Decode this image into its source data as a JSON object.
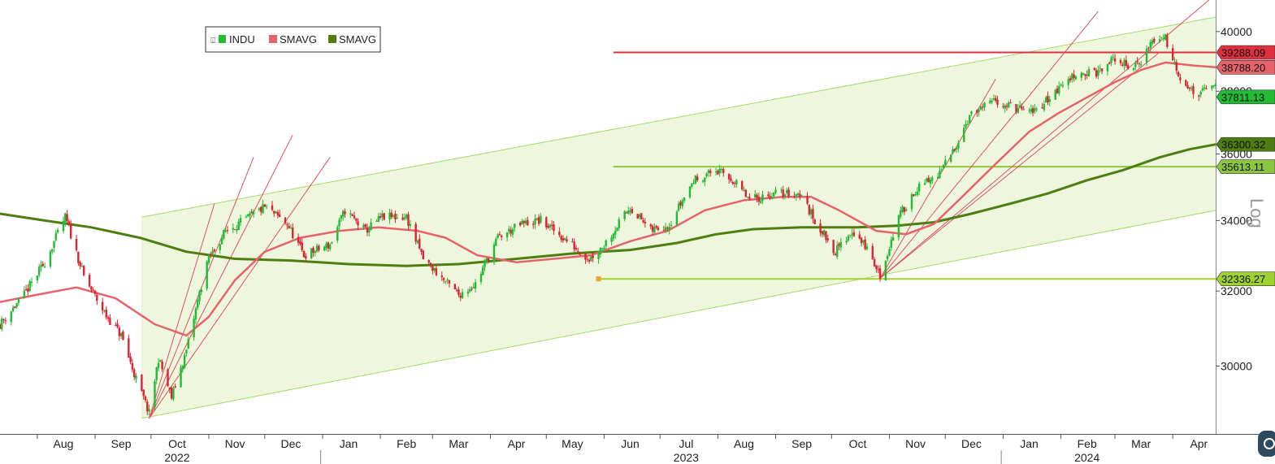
{
  "chart_data": {
    "type": "candlestick",
    "scale": "log",
    "scale_label": "Log",
    "legend": {
      "placement": "top-left",
      "entries": [
        {
          "name": "INDU",
          "color": "#22bb33"
        },
        {
          "name": "SMAVG",
          "color": "#e8626c"
        },
        {
          "name": "SMAVG",
          "color": "#4e7d12"
        }
      ]
    },
    "x_range": [
      "2022-07-12",
      "2024-04-24"
    ],
    "ylim": [
      28300,
      41100
    ],
    "y_ticks": [
      30000,
      32000,
      34000,
      36000,
      38000,
      40000
    ],
    "month_ticks": [
      {
        "label": "Aug",
        "date": "2022-08-15"
      },
      {
        "label": "Sep",
        "date": "2022-09-15"
      },
      {
        "label": "Oct",
        "date": "2022-10-15"
      },
      {
        "label": "Nov",
        "date": "2022-11-15"
      },
      {
        "label": "Dec",
        "date": "2022-12-15"
      },
      {
        "label": "Jan",
        "date": "2023-01-15"
      },
      {
        "label": "Feb",
        "date": "2023-02-15"
      },
      {
        "label": "Mar",
        "date": "2023-03-15"
      },
      {
        "label": "Apr",
        "date": "2023-04-15"
      },
      {
        "label": "May",
        "date": "2023-05-15"
      },
      {
        "label": "Jun",
        "date": "2023-06-15"
      },
      {
        "label": "Jul",
        "date": "2023-07-15"
      },
      {
        "label": "Aug",
        "date": "2023-08-15"
      },
      {
        "label": "Sep",
        "date": "2023-09-15"
      },
      {
        "label": "Oct",
        "date": "2023-10-15"
      },
      {
        "label": "Nov",
        "date": "2023-11-15"
      },
      {
        "label": "Dec",
        "date": "2023-12-15"
      },
      {
        "label": "Jan",
        "date": "2024-01-15"
      },
      {
        "label": "Feb",
        "date": "2024-02-15"
      },
      {
        "label": "Mar",
        "date": "2024-03-15"
      },
      {
        "label": "Apr",
        "date": "2024-04-15"
      }
    ],
    "year_labels": [
      {
        "label": "2022",
        "date": "2022-10-15"
      },
      {
        "label": "2023",
        "date": "2023-07-15"
      },
      {
        "label": "2024",
        "date": "2024-02-15"
      }
    ],
    "year_dividers": [
      "2022-12-31",
      "2023-12-31"
    ],
    "price_path": [
      [
        "2022-07-12",
        31100
      ],
      [
        "2022-07-25",
        31900
      ],
      [
        "2022-08-05",
        32800
      ],
      [
        "2022-08-16",
        34100
      ],
      [
        "2022-08-26",
        32400
      ],
      [
        "2022-09-06",
        31400
      ],
      [
        "2022-09-15",
        30800
      ],
      [
        "2022-09-22",
        29800
      ],
      [
        "2022-09-30",
        28800
      ],
      [
        "2022-10-05",
        30200
      ],
      [
        "2022-10-12",
        29200
      ],
      [
        "2022-10-20",
        30400
      ],
      [
        "2022-10-31",
        32800
      ],
      [
        "2022-11-10",
        33700
      ],
      [
        "2022-11-20",
        34000
      ],
      [
        "2022-12-01",
        34400
      ],
      [
        "2022-12-13",
        33900
      ],
      [
        "2022-12-22",
        33000
      ],
      [
        "2023-01-05",
        33300
      ],
      [
        "2023-01-13",
        34300
      ],
      [
        "2023-01-24",
        33700
      ],
      [
        "2023-02-02",
        34100
      ],
      [
        "2023-02-15",
        34100
      ],
      [
        "2023-02-24",
        32900
      ],
      [
        "2023-03-09",
        32200
      ],
      [
        "2023-03-15",
        31900
      ],
      [
        "2023-03-24",
        32200
      ],
      [
        "2023-04-05",
        33500
      ],
      [
        "2023-04-18",
        33900
      ],
      [
        "2023-04-28",
        34000
      ],
      [
        "2023-05-10",
        33500
      ],
      [
        "2023-05-24",
        32900
      ],
      [
        "2023-06-01",
        33300
      ],
      [
        "2023-06-15",
        34400
      ],
      [
        "2023-06-26",
        33700
      ],
      [
        "2023-07-06",
        33900
      ],
      [
        "2023-07-19",
        35200
      ],
      [
        "2023-07-31",
        35500
      ],
      [
        "2023-08-09",
        35200
      ],
      [
        "2023-08-18",
        34600
      ],
      [
        "2023-08-31",
        34800
      ],
      [
        "2023-09-14",
        34800
      ],
      [
        "2023-09-22",
        34000
      ],
      [
        "2023-10-03",
        33100
      ],
      [
        "2023-10-12",
        33700
      ],
      [
        "2023-10-20",
        33200
      ],
      [
        "2023-10-27",
        32400
      ],
      [
        "2023-11-06",
        34100
      ],
      [
        "2023-11-15",
        34900
      ],
      [
        "2023-11-28",
        35400
      ],
      [
        "2023-12-05",
        36100
      ],
      [
        "2023-12-14",
        37200
      ],
      [
        "2023-12-28",
        37700
      ],
      [
        "2024-01-05",
        37500
      ],
      [
        "2024-01-17",
        37300
      ],
      [
        "2024-01-31",
        38100
      ],
      [
        "2024-02-09",
        38600
      ],
      [
        "2024-02-21",
        38600
      ],
      [
        "2024-03-01",
        39100
      ],
      [
        "2024-03-08",
        38800
      ],
      [
        "2024-03-14",
        38900
      ],
      [
        "2024-03-21",
        39700
      ],
      [
        "2024-03-28",
        39800
      ],
      [
        "2024-04-04",
        38600
      ],
      [
        "2024-04-12",
        37900
      ],
      [
        "2024-04-19",
        38000
      ],
      [
        "2024-04-22",
        38200
      ]
    ],
    "sma_fast": [
      [
        "2022-07-12",
        31700
      ],
      [
        "2022-08-01",
        31900
      ],
      [
        "2022-08-22",
        32100
      ],
      [
        "2022-09-12",
        31800
      ],
      [
        "2022-10-03",
        31100
      ],
      [
        "2022-10-20",
        30800
      ],
      [
        "2022-11-01",
        31300
      ],
      [
        "2022-11-15",
        32300
      ],
      [
        "2022-12-01",
        33100
      ],
      [
        "2022-12-20",
        33500
      ],
      [
        "2023-01-10",
        33700
      ],
      [
        "2023-01-31",
        33800
      ],
      [
        "2023-02-21",
        33700
      ],
      [
        "2023-03-08",
        33500
      ],
      [
        "2023-03-25",
        33000
      ],
      [
        "2023-04-15",
        32800
      ],
      [
        "2023-05-05",
        32900
      ],
      [
        "2023-05-25",
        33000
      ],
      [
        "2023-06-15",
        33400
      ],
      [
        "2023-07-05",
        33700
      ],
      [
        "2023-07-25",
        34300
      ],
      [
        "2023-08-15",
        34600
      ],
      [
        "2023-09-05",
        34700
      ],
      [
        "2023-09-20",
        34700
      ],
      [
        "2023-10-05",
        34300
      ],
      [
        "2023-10-25",
        33700
      ],
      [
        "2023-11-10",
        33600
      ],
      [
        "2023-11-25",
        33900
      ],
      [
        "2023-12-10",
        34700
      ],
      [
        "2023-12-28",
        35700
      ],
      [
        "2024-01-15",
        36700
      ],
      [
        "2024-01-31",
        37300
      ],
      [
        "2024-02-15",
        37800
      ],
      [
        "2024-03-01",
        38300
      ],
      [
        "2024-03-15",
        38700
      ],
      [
        "2024-03-28",
        38950
      ],
      [
        "2024-04-12",
        38850
      ],
      [
        "2024-04-24",
        38788.2
      ]
    ],
    "sma_slow": [
      [
        "2022-07-12",
        34200
      ],
      [
        "2022-08-05",
        34000
      ],
      [
        "2022-08-30",
        33800
      ],
      [
        "2022-09-25",
        33500
      ],
      [
        "2022-10-20",
        33100
      ],
      [
        "2022-11-15",
        32900
      ],
      [
        "2022-12-15",
        32850
      ],
      [
        "2023-01-15",
        32750
      ],
      [
        "2023-02-15",
        32700
      ],
      [
        "2023-03-15",
        32750
      ],
      [
        "2023-04-15",
        32900
      ],
      [
        "2023-05-15",
        33050
      ],
      [
        "2023-06-15",
        33150
      ],
      [
        "2023-07-10",
        33350
      ],
      [
        "2023-07-31",
        33600
      ],
      [
        "2023-08-20",
        33750
      ],
      [
        "2023-09-15",
        33800
      ],
      [
        "2023-10-15",
        33800
      ],
      [
        "2023-11-05",
        33850
      ],
      [
        "2023-11-25",
        33950
      ],
      [
        "2023-12-15",
        34200
      ],
      [
        "2024-01-05",
        34500
      ],
      [
        "2024-01-25",
        34800
      ],
      [
        "2024-02-15",
        35200
      ],
      [
        "2024-03-05",
        35500
      ],
      [
        "2024-03-25",
        35900
      ],
      [
        "2024-04-10",
        36150
      ],
      [
        "2024-04-24",
        36300.32
      ]
    ],
    "channel": {
      "lower": [
        [
          "2022-09-26",
          28680
        ],
        [
          "2024-04-24",
          34300
        ]
      ],
      "upper": [
        [
          "2022-09-26",
          34100
        ],
        [
          "2024-04-24",
          40500
        ]
      ]
    },
    "horizontal_lines": [
      {
        "value": 39288.09,
        "start": "2023-06-06",
        "color": "#e03040"
      },
      {
        "value": 35613.11,
        "start": "2023-06-06",
        "color": "#8cc63f"
      },
      {
        "value": 32336.27,
        "start": "2023-05-29",
        "color": "#9fd22e"
      }
    ],
    "fan_lines_2022": {
      "origin": [
        "2022-09-30",
        28680
      ],
      "targets": [
        [
          "2022-11-04",
          34500
        ],
        [
          "2022-11-25",
          35900
        ],
        [
          "2022-12-16",
          36600
        ],
        [
          "2023-01-05",
          35900
        ]
      ]
    },
    "fan_lines_2023": {
      "origin": [
        "2023-10-27",
        32350
      ],
      "targets": [
        [
          "2023-12-28",
          38400
        ],
        [
          "2024-02-21",
          40700
        ],
        [
          "2024-04-24",
          41300
        ],
        [
          "2024-03-25",
          39300
        ]
      ]
    },
    "price_labels": [
      {
        "text": "39288.09",
        "value": 39288.09,
        "bg": "#e03040",
        "fg": "#ffffff"
      },
      {
        "text": "38788.20",
        "value": 38788.2,
        "bg": "#e8626c",
        "fg": "#111111"
      },
      {
        "text": "37811.13",
        "value": 37811.13,
        "bg": "#22bb33",
        "fg": "#111111"
      },
      {
        "text": "36300.32",
        "value": 36300.32,
        "bg": "#4e7d12",
        "fg": "#ffffff"
      },
      {
        "text": "35613.11",
        "value": 35613.11,
        "bg": "#8cc63f",
        "fg": "#111111"
      },
      {
        "text": "32336.27",
        "value": 32336.27,
        "bg": "#9fd22e",
        "fg": "#111111"
      }
    ],
    "colors": {
      "up": "#22bb33",
      "down": "#dd2233",
      "channel_fill": "#eef7dd",
      "channel_line": "#a6d96a",
      "fan": "#e05060",
      "sma_fast": "#e8626c",
      "sma_slow": "#4e7d12"
    }
  }
}
